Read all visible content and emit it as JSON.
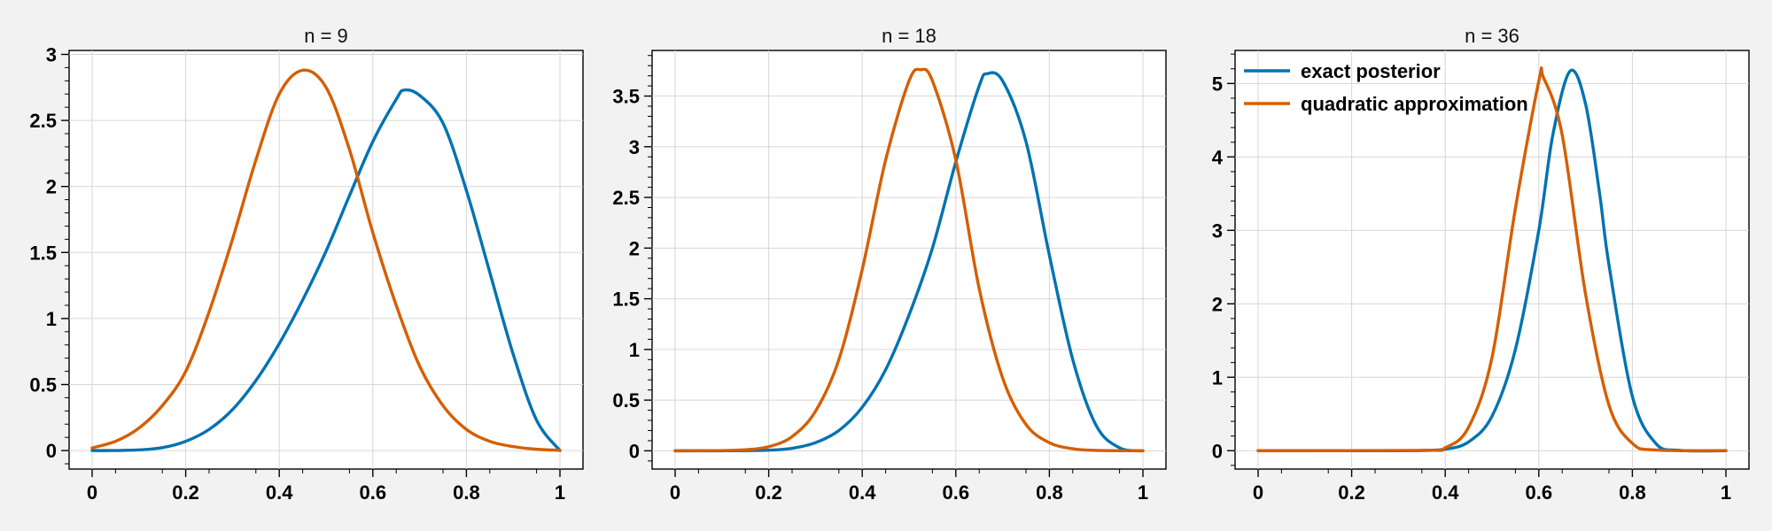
{
  "colors": {
    "background": "#f2f2f2",
    "exact_posterior": "#0072b2",
    "quadratic_approximation": "#d55e00",
    "grid": "#d6d6d6"
  },
  "legend": {
    "placement": "top-left of third panel",
    "items": [
      {
        "label": "exact posterior",
        "color": "#0072b2"
      },
      {
        "label": "quadratic approximation",
        "color": "#d55e00"
      }
    ]
  },
  "chart_data": [
    {
      "type": "line",
      "title": "n = 9",
      "xlim": [
        0,
        1
      ],
      "ylim": [
        -0.14,
        3.03
      ],
      "xticks": [
        0,
        0.2,
        0.4,
        0.6,
        0.8,
        1
      ],
      "xtick_labels": [
        "0",
        "0.2",
        "0.4",
        "0.6",
        "0.8",
        "1"
      ],
      "yticks": [
        0,
        0.5,
        1,
        1.5,
        2,
        2.5,
        3
      ],
      "ytick_labels": [
        "0",
        "0.5",
        "1",
        "1.5",
        "2",
        "2.5",
        "3"
      ],
      "grid": true,
      "series": [
        {
          "kind": "exact",
          "color": "#0072b2",
          "x": [
            0,
            0.05,
            0.1,
            0.15,
            0.2,
            0.25,
            0.3,
            0.35,
            0.4,
            0.45,
            0.5,
            0.55,
            0.6,
            0.65,
            0.667,
            0.7,
            0.75,
            0.8,
            0.85,
            0.9,
            0.95,
            1
          ],
          "y": [
            0,
            0.0003,
            0.005,
            0.022,
            0.07,
            0.16,
            0.31,
            0.53,
            0.81,
            1.14,
            1.51,
            1.93,
            2.34,
            2.66,
            2.73,
            2.69,
            2.48,
            1.97,
            1.35,
            0.73,
            0.23,
            0
          ]
        },
        {
          "kind": "quadratic",
          "color": "#d55e00",
          "x": [
            0,
            0.05,
            0.1,
            0.15,
            0.2,
            0.25,
            0.3,
            0.35,
            0.4,
            0.45,
            0.5,
            0.55,
            0.6,
            0.65,
            0.7,
            0.75,
            0.8,
            0.85,
            0.9,
            0.95,
            1
          ],
          "y": [
            0.02,
            0.07,
            0.17,
            0.34,
            0.6,
            1.05,
            1.6,
            2.2,
            2.7,
            2.88,
            2.75,
            2.28,
            1.65,
            1.1,
            0.64,
            0.34,
            0.16,
            0.07,
            0.03,
            0.01,
            0.002
          ]
        }
      ]
    },
    {
      "type": "line",
      "title": "n = 18",
      "xlim": [
        0,
        1
      ],
      "ylim": [
        -0.18,
        3.95
      ],
      "xticks": [
        0,
        0.2,
        0.4,
        0.6,
        0.8,
        1
      ],
      "xtick_labels": [
        "0",
        "0.2",
        "0.4",
        "0.6",
        "0.8",
        "1"
      ],
      "yticks": [
        0,
        0.5,
        1,
        1.5,
        2,
        2.5,
        3,
        3.5
      ],
      "ytick_labels": [
        "0",
        "0.5",
        "1",
        "1.5",
        "2",
        "2.5",
        "3",
        "3.5"
      ],
      "grid": true,
      "series": [
        {
          "kind": "exact",
          "color": "#0072b2",
          "x": [
            0,
            0.1,
            0.2,
            0.25,
            0.3,
            0.35,
            0.4,
            0.45,
            0.5,
            0.55,
            0.6,
            0.65,
            0.667,
            0.7,
            0.75,
            0.8,
            0.85,
            0.9,
            0.95,
            1
          ],
          "y": [
            0,
            0.0001,
            0.006,
            0.025,
            0.08,
            0.2,
            0.43,
            0.8,
            1.34,
            2.0,
            2.85,
            3.6,
            3.72,
            3.65,
            3.05,
            1.93,
            0.9,
            0.25,
            0.03,
            0
          ]
        },
        {
          "kind": "quadratic",
          "color": "#d55e00",
          "x": [
            0,
            0.1,
            0.15,
            0.2,
            0.25,
            0.3,
            0.35,
            0.4,
            0.45,
            0.5,
            0.525,
            0.55,
            0.6,
            0.65,
            0.7,
            0.75,
            0.8,
            0.85,
            0.9,
            1
          ],
          "y": [
            0,
            0.002,
            0.01,
            0.04,
            0.14,
            0.39,
            0.9,
            1.79,
            2.87,
            3.65,
            3.76,
            3.65,
            2.87,
            1.6,
            0.72,
            0.26,
            0.08,
            0.02,
            0.004,
            0
          ]
        }
      ]
    },
    {
      "type": "line",
      "title": "n = 36",
      "xlim": [
        0,
        1
      ],
      "ylim": [
        -0.25,
        5.45
      ],
      "xticks": [
        0,
        0.2,
        0.4,
        0.6,
        0.8,
        1
      ],
      "xtick_labels": [
        "0",
        "0.2",
        "0.4",
        "0.6",
        "0.8",
        "1"
      ],
      "yticks": [
        0,
        1,
        2,
        3,
        4,
        5
      ],
      "ytick_labels": [
        "0",
        "1",
        "2",
        "3",
        "4",
        "5"
      ],
      "grid": true,
      "series": [
        {
          "kind": "exact",
          "color": "#0072b2",
          "x": [
            0,
            0.3,
            0.35,
            0.4,
            0.45,
            0.5,
            0.55,
            0.6,
            0.63,
            0.667,
            0.7,
            0.73,
            0.75,
            0.8,
            0.85,
            0.9,
            1
          ],
          "y": [
            0,
            0,
            0.003,
            0.02,
            0.12,
            0.47,
            1.38,
            3.0,
            4.3,
            5.17,
            4.72,
            3.5,
            2.53,
            0.74,
            0.1,
            0.005,
            0
          ]
        },
        {
          "kind": "quadratic",
          "color": "#d55e00",
          "x": [
            0,
            0.35,
            0.4,
            0.45,
            0.5,
            0.55,
            0.6,
            0.61,
            0.65,
            0.7,
            0.75,
            0.8,
            0.85,
            1
          ],
          "y": [
            0,
            0.004,
            0.04,
            0.32,
            1.27,
            3.3,
            5.03,
            5.08,
            4.3,
            2.13,
            0.62,
            0.1,
            0.01,
            0
          ]
        }
      ]
    }
  ]
}
